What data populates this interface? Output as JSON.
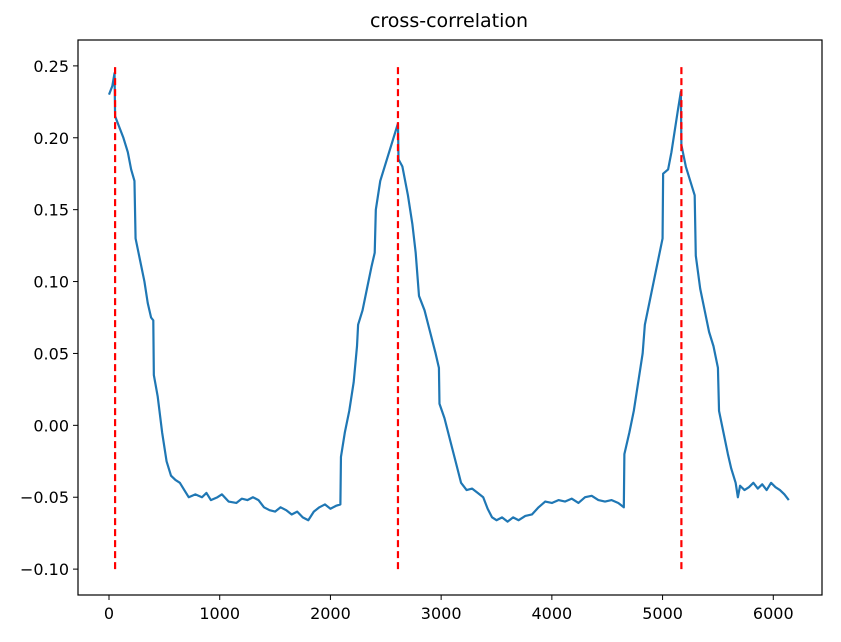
{
  "chart_data": {
    "type": "line",
    "title": "cross-correlation",
    "xlabel": "",
    "ylabel": "",
    "xlim": [
      -280,
      6440
    ],
    "ylim": [
      -0.118,
      0.268
    ],
    "grid": false,
    "legend": "none",
    "x_ticks": [
      {
        "value": 0,
        "label": "0"
      },
      {
        "value": 1000,
        "label": "1000"
      },
      {
        "value": 2000,
        "label": "2000"
      },
      {
        "value": 3000,
        "label": "3000"
      },
      {
        "value": 4000,
        "label": "4000"
      },
      {
        "value": 5000,
        "label": "5000"
      },
      {
        "value": 6000,
        "label": "6000"
      }
    ],
    "y_ticks": [
      {
        "value": -0.1,
        "label": "−0.10"
      },
      {
        "value": -0.05,
        "label": "−0.05"
      },
      {
        "value": 0.0,
        "label": "0.00"
      },
      {
        "value": 0.05,
        "label": "0.05"
      },
      {
        "value": 0.1,
        "label": "0.10"
      },
      {
        "value": 0.15,
        "label": "0.15"
      },
      {
        "value": 0.2,
        "label": "0.20"
      },
      {
        "value": 0.25,
        "label": "0.25"
      }
    ],
    "series": [
      {
        "color": "#1f77b4",
        "points": [
          [
            0,
            0.23
          ],
          [
            30,
            0.236
          ],
          [
            50,
            0.245
          ],
          [
            55,
            0.215
          ],
          [
            90,
            0.208
          ],
          [
            130,
            0.2
          ],
          [
            170,
            0.19
          ],
          [
            200,
            0.178
          ],
          [
            230,
            0.17
          ],
          [
            240,
            0.13
          ],
          [
            280,
            0.115
          ],
          [
            320,
            0.1
          ],
          [
            350,
            0.085
          ],
          [
            380,
            0.075
          ],
          [
            400,
            0.073
          ],
          [
            405,
            0.035
          ],
          [
            440,
            0.02
          ],
          [
            480,
            -0.005
          ],
          [
            520,
            -0.025
          ],
          [
            560,
            -0.035
          ],
          [
            600,
            -0.038
          ],
          [
            640,
            -0.04
          ],
          [
            680,
            -0.045
          ],
          [
            720,
            -0.05
          ],
          [
            780,
            -0.048
          ],
          [
            840,
            -0.05
          ],
          [
            880,
            -0.047
          ],
          [
            920,
            -0.052
          ],
          [
            980,
            -0.05
          ],
          [
            1020,
            -0.048
          ],
          [
            1080,
            -0.053
          ],
          [
            1150,
            -0.054
          ],
          [
            1200,
            -0.051
          ],
          [
            1250,
            -0.052
          ],
          [
            1300,
            -0.05
          ],
          [
            1350,
            -0.052
          ],
          [
            1400,
            -0.057
          ],
          [
            1450,
            -0.059
          ],
          [
            1500,
            -0.06
          ],
          [
            1550,
            -0.057
          ],
          [
            1600,
            -0.059
          ],
          [
            1650,
            -0.062
          ],
          [
            1700,
            -0.06
          ],
          [
            1750,
            -0.064
          ],
          [
            1800,
            -0.066
          ],
          [
            1850,
            -0.06
          ],
          [
            1900,
            -0.057
          ],
          [
            1950,
            -0.055
          ],
          [
            2000,
            -0.058
          ],
          [
            2050,
            -0.056
          ],
          [
            2090,
            -0.055
          ],
          [
            2095,
            -0.022
          ],
          [
            2130,
            -0.005
          ],
          [
            2170,
            0.01
          ],
          [
            2210,
            0.03
          ],
          [
            2240,
            0.055
          ],
          [
            2250,
            0.07
          ],
          [
            2290,
            0.08
          ],
          [
            2330,
            0.095
          ],
          [
            2370,
            0.11
          ],
          [
            2400,
            0.12
          ],
          [
            2410,
            0.15
          ],
          [
            2450,
            0.17
          ],
          [
            2490,
            0.18
          ],
          [
            2530,
            0.19
          ],
          [
            2570,
            0.2
          ],
          [
            2610,
            0.21
          ],
          [
            2615,
            0.185
          ],
          [
            2650,
            0.18
          ],
          [
            2700,
            0.16
          ],
          [
            2740,
            0.14
          ],
          [
            2770,
            0.12
          ],
          [
            2800,
            0.09
          ],
          [
            2850,
            0.08
          ],
          [
            2900,
            0.065
          ],
          [
            2950,
            0.05
          ],
          [
            2980,
            0.04
          ],
          [
            2985,
            0.015
          ],
          [
            3030,
            0.005
          ],
          [
            3080,
            -0.01
          ],
          [
            3130,
            -0.025
          ],
          [
            3180,
            -0.04
          ],
          [
            3230,
            -0.045
          ],
          [
            3280,
            -0.044
          ],
          [
            3330,
            -0.047
          ],
          [
            3380,
            -0.05
          ],
          [
            3420,
            -0.058
          ],
          [
            3460,
            -0.064
          ],
          [
            3500,
            -0.066
          ],
          [
            3550,
            -0.064
          ],
          [
            3600,
            -0.067
          ],
          [
            3650,
            -0.064
          ],
          [
            3700,
            -0.066
          ],
          [
            3760,
            -0.063
          ],
          [
            3820,
            -0.062
          ],
          [
            3880,
            -0.057
          ],
          [
            3940,
            -0.053
          ],
          [
            4000,
            -0.054
          ],
          [
            4060,
            -0.052
          ],
          [
            4120,
            -0.053
          ],
          [
            4180,
            -0.051
          ],
          [
            4240,
            -0.054
          ],
          [
            4300,
            -0.05
          ],
          [
            4360,
            -0.049
          ],
          [
            4420,
            -0.052
          ],
          [
            4480,
            -0.053
          ],
          [
            4540,
            -0.052
          ],
          [
            4600,
            -0.054
          ],
          [
            4650,
            -0.057
          ],
          [
            4655,
            -0.02
          ],
          [
            4700,
            -0.005
          ],
          [
            4740,
            0.01
          ],
          [
            4780,
            0.03
          ],
          [
            4820,
            0.05
          ],
          [
            4840,
            0.07
          ],
          [
            4880,
            0.085
          ],
          [
            4920,
            0.1
          ],
          [
            4960,
            0.115
          ],
          [
            5000,
            0.13
          ],
          [
            5005,
            0.175
          ],
          [
            5050,
            0.178
          ],
          [
            5080,
            0.19
          ],
          [
            5110,
            0.205
          ],
          [
            5140,
            0.22
          ],
          [
            5165,
            0.232
          ],
          [
            5170,
            0.195
          ],
          [
            5210,
            0.18
          ],
          [
            5250,
            0.17
          ],
          [
            5290,
            0.16
          ],
          [
            5300,
            0.118
          ],
          [
            5340,
            0.095
          ],
          [
            5380,
            0.08
          ],
          [
            5420,
            0.065
          ],
          [
            5460,
            0.055
          ],
          [
            5500,
            0.04
          ],
          [
            5510,
            0.01
          ],
          [
            5550,
            -0.005
          ],
          [
            5590,
            -0.02
          ],
          [
            5620,
            -0.03
          ],
          [
            5660,
            -0.04
          ],
          [
            5680,
            -0.05
          ],
          [
            5700,
            -0.042
          ],
          [
            5740,
            -0.045
          ],
          [
            5780,
            -0.043
          ],
          [
            5820,
            -0.04
          ],
          [
            5860,
            -0.044
          ],
          [
            5900,
            -0.041
          ],
          [
            5940,
            -0.045
          ],
          [
            5980,
            -0.04
          ],
          [
            6020,
            -0.043
          ],
          [
            6060,
            -0.045
          ],
          [
            6100,
            -0.048
          ],
          [
            6140,
            -0.052
          ]
        ]
      }
    ],
    "vlines": {
      "color": "#ff0000",
      "style": "dashed",
      "x": [
        55,
        2610,
        5170
      ],
      "y_from": -0.1,
      "y_to": 0.25
    }
  }
}
